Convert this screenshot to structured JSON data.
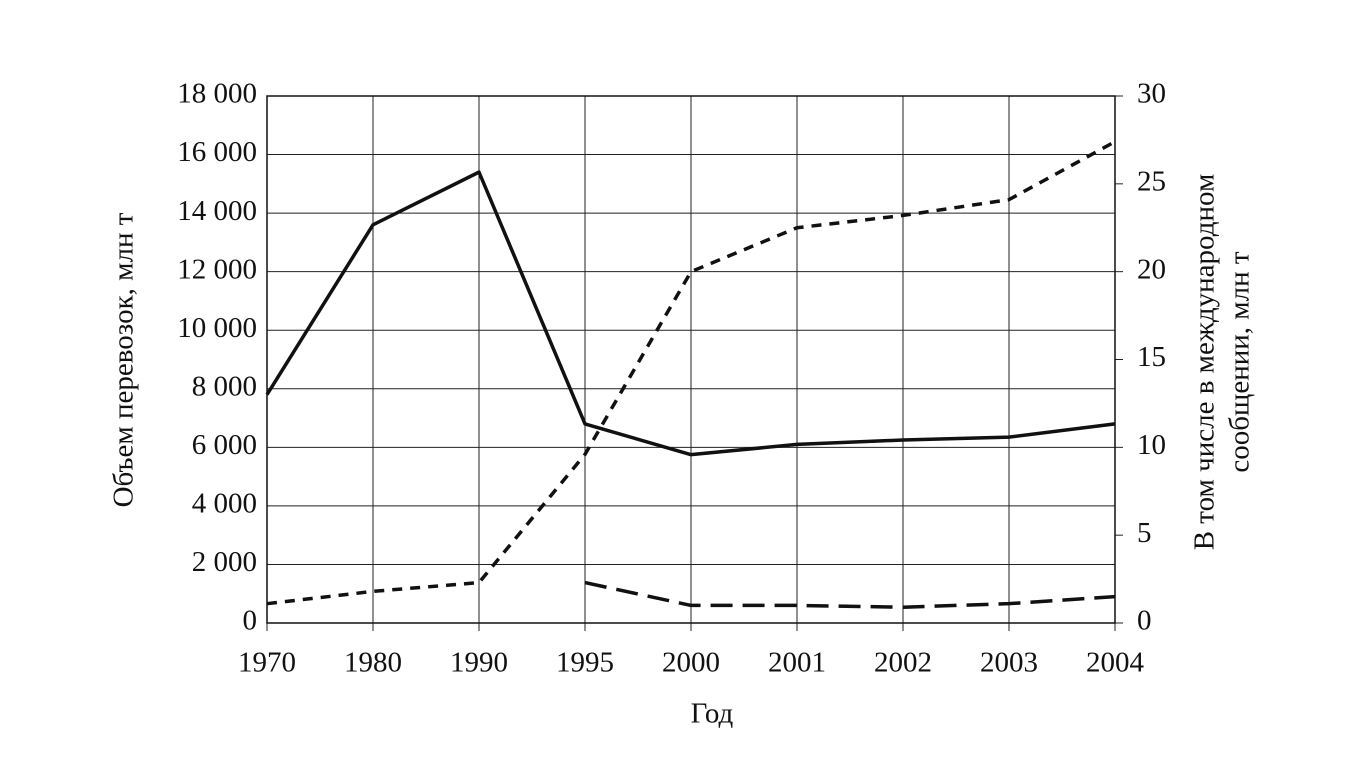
{
  "chart_data": {
    "type": "line",
    "x_label": "Год",
    "y_label": "Объем перевозок, млн т",
    "y2_label": [
      "В том числе в международном",
      "сообщении, млн т"
    ],
    "categories": [
      "1970",
      "1980",
      "1990",
      "1995",
      "2000",
      "2001",
      "2002",
      "2003",
      "2004"
    ],
    "ylim": [
      0,
      18000
    ],
    "yticks": [
      0,
      {
        "value": 2000,
        "label": "2 000"
      },
      {
        "value": 4000,
        "label": "4 000"
      },
      {
        "value": 6000,
        "label": "6 000"
      },
      {
        "value": 8000,
        "label": "8 000"
      },
      {
        "value": 10000,
        "label": "10 000"
      },
      {
        "value": 12000,
        "label": "12 000"
      },
      {
        "value": 14000,
        "label": "14 000"
      },
      {
        "value": 16000,
        "label": "16 000"
      },
      {
        "value": 18000,
        "label": "18 000"
      }
    ],
    "y2lim": [
      0,
      30
    ],
    "y2ticks": [
      0,
      5,
      10,
      15,
      20,
      25,
      30
    ],
    "grid": true,
    "series": [
      {
        "color": "#111111",
        "dash": "solid",
        "values": [
          7800,
          13600,
          15400,
          6800,
          5750,
          6100,
          6250,
          6350,
          6800
        ]
      },
      {
        "color": "#111111",
        "dash": "short",
        "axis": "y2",
        "values": [
          1.1,
          1.8,
          2.3,
          9.6,
          20.0,
          22.5,
          23.2,
          24.1,
          27.4
        ]
      },
      {
        "color": "#111111",
        "dash": "long",
        "axis": "y2",
        "values": [
          null,
          null,
          null,
          2.3,
          1.0,
          1.0,
          0.9,
          1.1,
          1.5
        ]
      }
    ]
  }
}
